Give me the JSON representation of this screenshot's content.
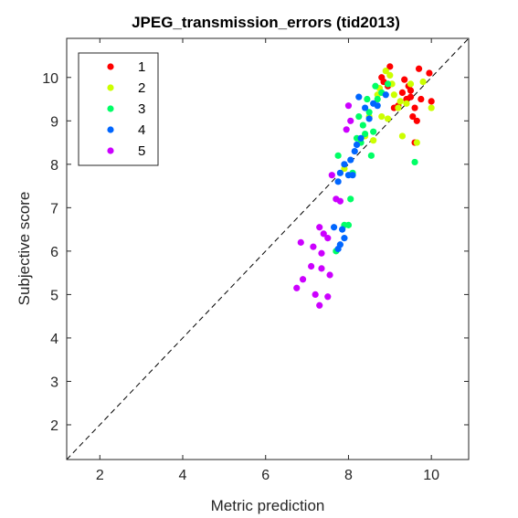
{
  "chart_data": {
    "type": "scatter",
    "title": "JPEG_transmission_errors (tid2013)",
    "xlabel": "Metric prediction",
    "ylabel": "Subjective score",
    "xlim": [
      1.2,
      10.9
    ],
    "ylim": [
      1.2,
      10.9
    ],
    "xticks": [
      2,
      4,
      6,
      8,
      10
    ],
    "yticks": [
      2,
      3,
      4,
      5,
      6,
      7,
      8,
      9,
      10
    ],
    "grid": false,
    "legend_position": "top-left",
    "reference_line": {
      "style": "dashed",
      "from": [
        1.2,
        1.2
      ],
      "to": [
        10.9,
        10.9
      ]
    },
    "series": [
      {
        "name": "1",
        "color": "#ff0000",
        "points": [
          [
            8.8,
            10.0
          ],
          [
            8.85,
            9.9
          ],
          [
            9.0,
            10.25
          ],
          [
            9.1,
            9.3
          ],
          [
            9.2,
            9.35
          ],
          [
            9.3,
            9.65
          ],
          [
            9.4,
            9.5
          ],
          [
            9.45,
            9.8
          ],
          [
            9.5,
            9.55
          ],
          [
            9.5,
            9.7
          ],
          [
            9.6,
            9.3
          ],
          [
            9.55,
            9.1
          ],
          [
            9.6,
            8.5
          ],
          [
            9.65,
            9.0
          ],
          [
            9.7,
            10.2
          ],
          [
            9.95,
            10.1
          ],
          [
            10.0,
            9.45
          ],
          [
            8.95,
            9.8
          ],
          [
            9.35,
            9.95
          ],
          [
            9.75,
            9.5
          ]
        ]
      },
      {
        "name": "2",
        "color": "#ccff00",
        "points": [
          [
            7.9,
            7.9
          ],
          [
            8.4,
            8.65
          ],
          [
            8.5,
            9.1
          ],
          [
            8.6,
            8.55
          ],
          [
            8.7,
            9.6
          ],
          [
            8.75,
            9.75
          ],
          [
            8.8,
            9.1
          ],
          [
            8.9,
            10.15
          ],
          [
            9.0,
            10.05
          ],
          [
            9.05,
            9.85
          ],
          [
            9.1,
            9.6
          ],
          [
            9.2,
            9.3
          ],
          [
            9.3,
            8.65
          ],
          [
            9.4,
            9.4
          ],
          [
            9.5,
            9.85
          ],
          [
            9.65,
            8.5
          ],
          [
            9.8,
            9.9
          ],
          [
            10.0,
            9.3
          ],
          [
            8.95,
            9.05
          ],
          [
            9.25,
            9.45
          ]
        ]
      },
      {
        "name": "3",
        "color": "#00ff66",
        "points": [
          [
            7.7,
            6.0
          ],
          [
            7.9,
            6.6
          ],
          [
            8.0,
            6.6
          ],
          [
            8.05,
            7.2
          ],
          [
            8.1,
            7.8
          ],
          [
            8.2,
            8.6
          ],
          [
            8.25,
            9.1
          ],
          [
            8.3,
            8.5
          ],
          [
            8.35,
            8.9
          ],
          [
            8.4,
            8.7
          ],
          [
            8.5,
            9.2
          ],
          [
            8.6,
            8.75
          ],
          [
            8.65,
            9.8
          ],
          [
            8.7,
            9.5
          ],
          [
            8.8,
            9.65
          ],
          [
            8.95,
            9.85
          ],
          [
            9.6,
            8.05
          ],
          [
            7.75,
            8.2
          ],
          [
            8.55,
            8.2
          ],
          [
            8.45,
            9.5
          ]
        ]
      },
      {
        "name": "4",
        "color": "#0066ff",
        "points": [
          [
            7.65,
            6.55
          ],
          [
            7.8,
            6.15
          ],
          [
            7.75,
            6.05
          ],
          [
            7.9,
            6.3
          ],
          [
            7.75,
            7.6
          ],
          [
            7.8,
            7.8
          ],
          [
            7.9,
            8.0
          ],
          [
            8.0,
            7.75
          ],
          [
            8.05,
            8.1
          ],
          [
            8.1,
            7.75
          ],
          [
            8.15,
            8.3
          ],
          [
            8.2,
            8.45
          ],
          [
            8.25,
            9.55
          ],
          [
            8.3,
            8.6
          ],
          [
            8.5,
            9.05
          ],
          [
            8.6,
            9.4
          ],
          [
            8.7,
            9.35
          ],
          [
            8.9,
            9.6
          ],
          [
            7.85,
            6.5
          ],
          [
            8.4,
            9.3
          ]
        ]
      },
      {
        "name": "5",
        "color": "#cc00ff",
        "points": [
          [
            6.75,
            5.15
          ],
          [
            6.85,
            6.2
          ],
          [
            6.9,
            5.35
          ],
          [
            7.1,
            5.65
          ],
          [
            7.15,
            6.1
          ],
          [
            7.2,
            5.0
          ],
          [
            7.3,
            4.75
          ],
          [
            7.3,
            6.55
          ],
          [
            7.35,
            5.95
          ],
          [
            7.35,
            5.6
          ],
          [
            7.4,
            6.4
          ],
          [
            7.5,
            6.3
          ],
          [
            7.5,
            4.95
          ],
          [
            7.55,
            5.45
          ],
          [
            7.6,
            7.75
          ],
          [
            7.7,
            7.2
          ],
          [
            7.8,
            7.15
          ],
          [
            8.0,
            9.35
          ],
          [
            8.05,
            9.0
          ],
          [
            7.95,
            8.8
          ]
        ]
      }
    ]
  }
}
